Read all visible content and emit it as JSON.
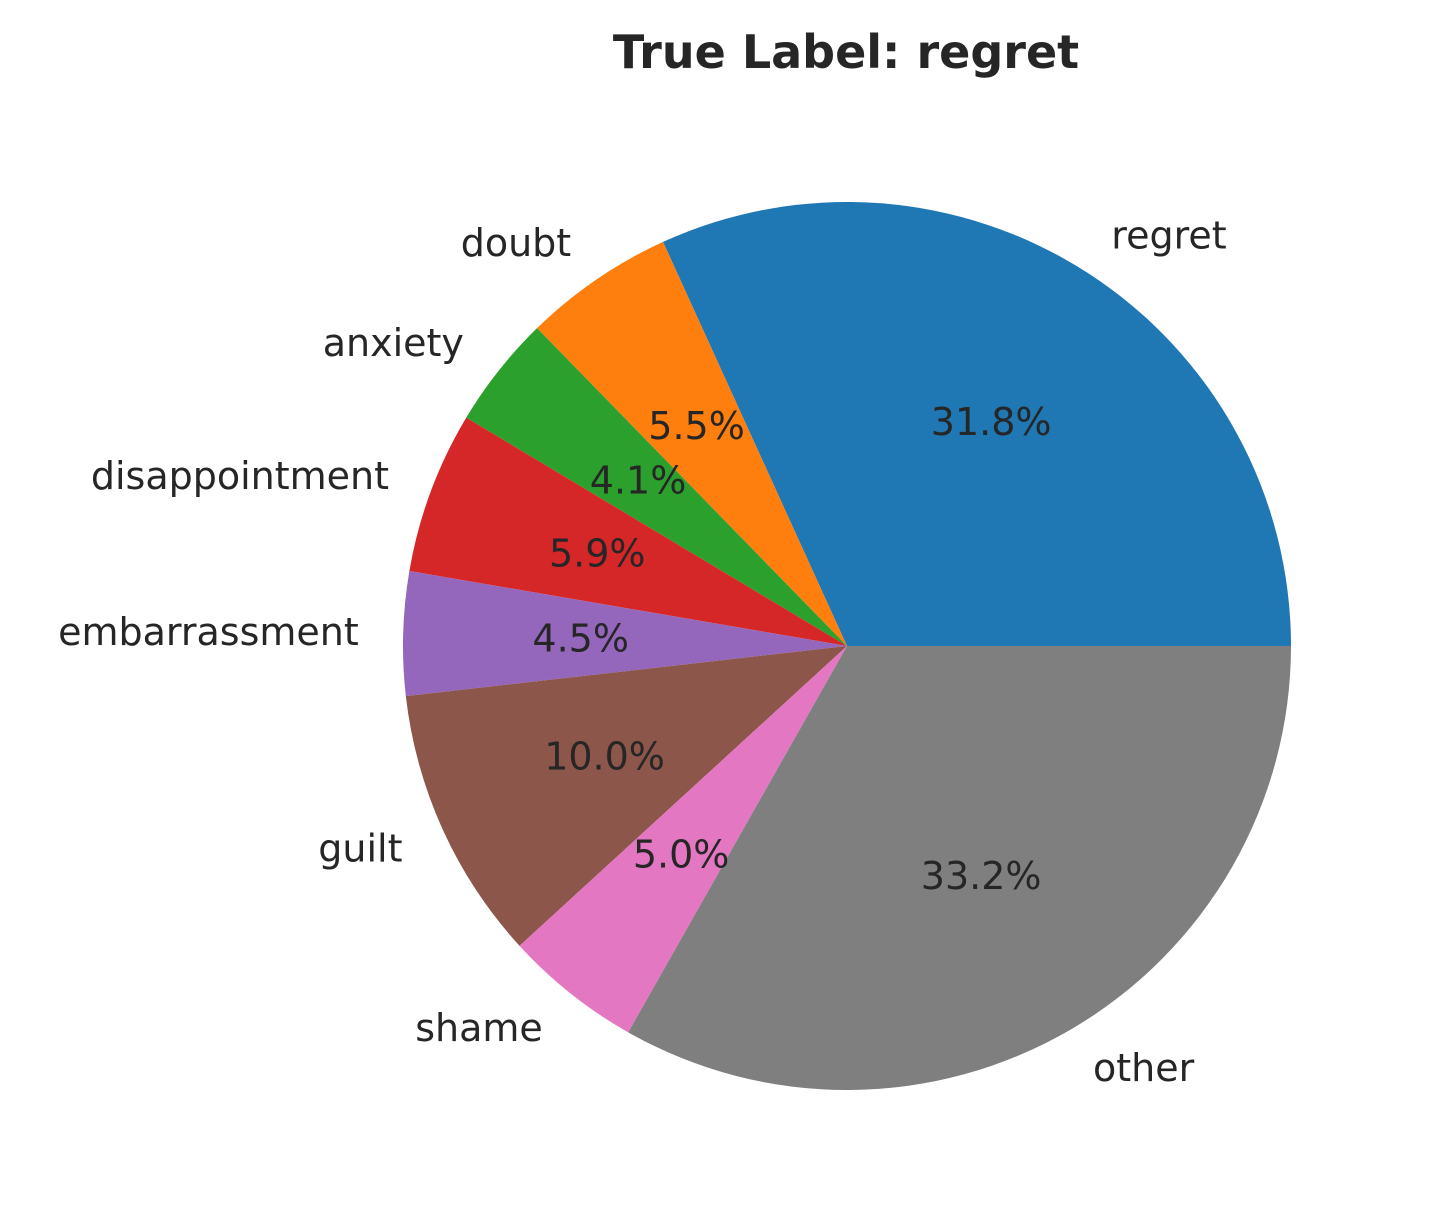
{
  "chart_data": {
    "type": "pie",
    "title": "True Label: regret",
    "categories": [
      "regret",
      "doubt",
      "anxiety",
      "disappointment",
      "embarrassment",
      "guilt",
      "shame",
      "other"
    ],
    "values": [
      31.8,
      5.5,
      4.1,
      5.9,
      4.5,
      10.0,
      5.0,
      33.2
    ],
    "value_labels": [
      "31.8%",
      "5.5%",
      "4.1%",
      "5.9%",
      "4.5%",
      "10.0%",
      "5.0%",
      "33.2%"
    ],
    "colors": [
      "#1f77b4",
      "#ff7f0e",
      "#2ca02c",
      "#d62728",
      "#9467bd",
      "#8c564b",
      "#e377c2",
      "#7f7f7f"
    ],
    "start_angle_deg": 0,
    "direction": "counterclockwise"
  }
}
